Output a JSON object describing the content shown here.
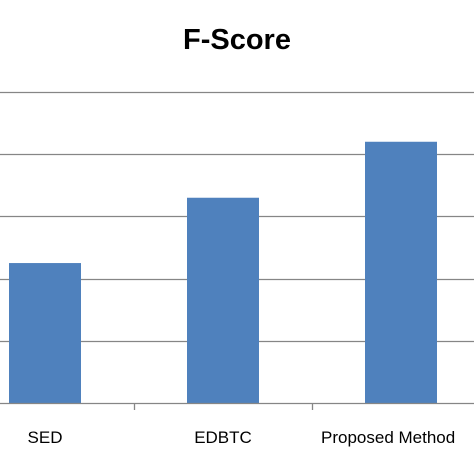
{
  "chart_data": {
    "type": "bar",
    "title": "F-Score",
    "categories": [
      "SED",
      "EDBTC",
      "Proposed Method"
    ],
    "values": [
      0.45,
      0.66,
      0.84
    ],
    "ylim": [
      0,
      1.0
    ],
    "grid": true,
    "legend": "none",
    "bar_color": "#4F81BD",
    "grid_color": "#868686"
  }
}
